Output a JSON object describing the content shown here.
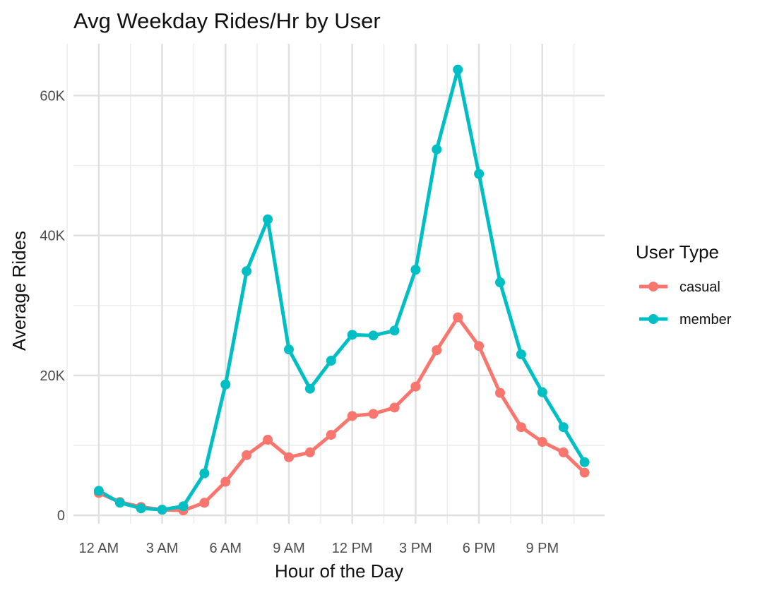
{
  "chart_data": {
    "type": "line",
    "title": "Avg Weekday Rides/Hr by User",
    "xlabel": "Hour of the Day",
    "ylabel": "Average Rides",
    "x": [
      0,
      1,
      2,
      3,
      4,
      5,
      6,
      7,
      8,
      9,
      10,
      11,
      12,
      13,
      14,
      15,
      16,
      17,
      18,
      19,
      20,
      21,
      22,
      23
    ],
    "xlim": [
      -1.2,
      23.95
    ],
    "ylim": [
      -1200,
      67400
    ],
    "x_ticks": [
      {
        "value": 0,
        "label": "12 AM"
      },
      {
        "value": 3,
        "label": "3 AM"
      },
      {
        "value": 6,
        "label": "6 AM"
      },
      {
        "value": 9,
        "label": "9 AM"
      },
      {
        "value": 12,
        "label": "12 PM"
      },
      {
        "value": 15,
        "label": "3 PM"
      },
      {
        "value": 18,
        "label": "6 PM"
      },
      {
        "value": 21,
        "label": "9 PM"
      }
    ],
    "y_ticks": [
      {
        "value": 0,
        "label": "0"
      },
      {
        "value": 20000,
        "label": "20K"
      },
      {
        "value": 40000,
        "label": "40K"
      },
      {
        "value": 60000,
        "label": "60K"
      }
    ],
    "x_minor_gridlines": [
      -1.5,
      1.5,
      4.5,
      7.5,
      10.5,
      13.5,
      16.5,
      19.5,
      22.5
    ],
    "y_minor_gridlines": [
      10000,
      30000,
      50000
    ],
    "grid": true,
    "legend": {
      "title": "User Type",
      "position": "right"
    },
    "series": [
      {
        "name": "casual",
        "color": "#F8766D",
        "values": [
          3200,
          1900,
          1200,
          800,
          700,
          1800,
          4800,
          8600,
          10800,
          8300,
          9000,
          11500,
          14200,
          14500,
          15400,
          18400,
          23600,
          28300,
          24200,
          17500,
          12600,
          10500,
          9000,
          6100
        ]
      },
      {
        "name": "member",
        "color": "#00BFC4",
        "values": [
          3500,
          1800,
          1000,
          800,
          1300,
          6000,
          18700,
          34900,
          42300,
          23700,
          18100,
          22100,
          25800,
          25700,
          26400,
          35100,
          52300,
          63700,
          48800,
          33300,
          23000,
          17600,
          12600,
          7600
        ]
      }
    ]
  }
}
